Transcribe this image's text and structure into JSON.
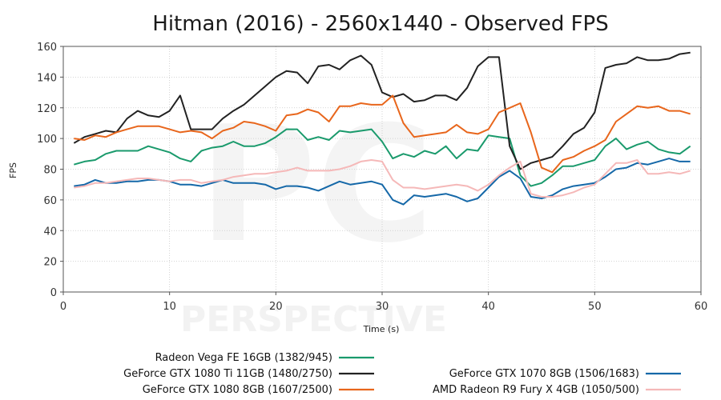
{
  "chart_data": {
    "type": "line",
    "title": "Hitman (2016) - 2560x1440 - Observed FPS",
    "xlabel": "Time (s)",
    "ylabel": "FPS",
    "xlim": [
      0,
      60
    ],
    "ylim": [
      0,
      160
    ],
    "xticks": [
      0,
      10,
      20,
      30,
      40,
      50,
      60
    ],
    "yticks": [
      0,
      20,
      40,
      60,
      80,
      100,
      120,
      140,
      160
    ],
    "grid": true,
    "legend_position": "bottom",
    "watermark": "PERSPECTIVE",
    "x": [
      1,
      2,
      3,
      4,
      5,
      6,
      7,
      8,
      9,
      10,
      11,
      12,
      13,
      14,
      15,
      16,
      17,
      18,
      19,
      20,
      21,
      22,
      23,
      24,
      25,
      26,
      27,
      28,
      29,
      30,
      31,
      32,
      33,
      34,
      35,
      36,
      37,
      38,
      39,
      40,
      41,
      42,
      43,
      44,
      45,
      46,
      47,
      48,
      49,
      50,
      51,
      52,
      53,
      54,
      55,
      56,
      57,
      58,
      59
    ],
    "series": [
      {
        "name": "Radeon Vega FE 16GB (1382/945)",
        "color": "#1a9a6c",
        "values": [
          83,
          85,
          86,
          90,
          92,
          92,
          92,
          95,
          93,
          91,
          87,
          85,
          92,
          94,
          95,
          98,
          95,
          95,
          97,
          101,
          106,
          106,
          99,
          101,
          99,
          105,
          104,
          105,
          106,
          98,
          87,
          90,
          88,
          92,
          90,
          95,
          87,
          93,
          92,
          102,
          101,
          100,
          76,
          69,
          71,
          76,
          82,
          82,
          84,
          86,
          95,
          100,
          93,
          96,
          98,
          93,
          91,
          90,
          95
        ]
      },
      {
        "name": "GeForce GTX 1080 Ti 11GB (1480/2750)",
        "color": "#222222",
        "values": [
          97,
          101,
          103,
          105,
          104,
          113,
          118,
          115,
          114,
          118,
          128,
          106,
          106,
          106,
          113,
          118,
          122,
          128,
          134,
          140,
          144,
          143,
          136,
          147,
          148,
          145,
          151,
          154,
          148,
          130,
          127,
          129,
          124,
          125,
          128,
          128,
          125,
          133,
          147,
          153,
          153,
          95,
          80,
          84,
          86,
          88,
          95,
          103,
          107,
          117,
          146,
          148,
          149,
          153,
          151,
          151,
          152,
          155,
          156
        ]
      },
      {
        "name": "GeForce GTX 1080 8GB (1607/2500)",
        "color": "#e8661c",
        "values": [
          100,
          99,
          102,
          101,
          104,
          106,
          108,
          108,
          108,
          106,
          104,
          105,
          104,
          100,
          105,
          107,
          111,
          110,
          108,
          105,
          115,
          116,
          119,
          117,
          111,
          121,
          121,
          123,
          122,
          122,
          128,
          110,
          101,
          102,
          103,
          104,
          109,
          104,
          103,
          106,
          117,
          120,
          123,
          104,
          81,
          78,
          86,
          88,
          92,
          95,
          99,
          111,
          116,
          121,
          120,
          121,
          118,
          118,
          116
        ]
      },
      {
        "name": "GeForce GTX 1070 8GB (1506/1683)",
        "color": "#1568a8",
        "values": [
          69,
          70,
          73,
          71,
          71,
          72,
          72,
          73,
          73,
          72,
          70,
          70,
          69,
          71,
          73,
          71,
          71,
          71,
          70,
          67,
          69,
          69,
          68,
          66,
          69,
          72,
          70,
          71,
          72,
          70,
          60,
          57,
          63,
          62,
          63,
          64,
          62,
          59,
          61,
          68,
          75,
          79,
          74,
          62,
          61,
          63,
          67,
          69,
          70,
          71,
          75,
          80,
          81,
          84,
          83,
          85,
          87,
          85,
          85
        ]
      },
      {
        "name": "AMD Radeon R9 Fury X 4GB (1050/500)",
        "color": "#f5b8b8",
        "values": [
          68,
          69,
          71,
          71,
          72,
          73,
          74,
          74,
          73,
          72,
          73,
          73,
          71,
          72,
          73,
          75,
          76,
          77,
          77,
          78,
          79,
          81,
          79,
          79,
          79,
          80,
          82,
          85,
          86,
          85,
          73,
          68,
          68,
          67,
          68,
          69,
          70,
          69,
          66,
          70,
          76,
          81,
          85,
          64,
          62,
          62,
          63,
          65,
          68,
          70,
          77,
          84,
          84,
          86,
          77,
          77,
          78,
          77,
          79
        ]
      }
    ]
  }
}
